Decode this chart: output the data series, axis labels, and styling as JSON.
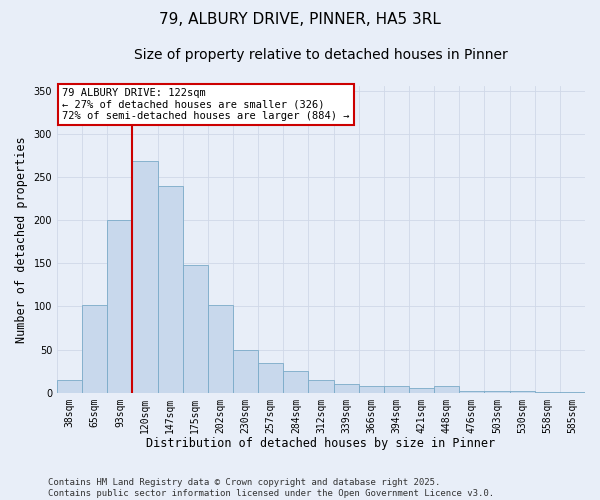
{
  "title1": "79, ALBURY DRIVE, PINNER, HA5 3RL",
  "title2": "Size of property relative to detached houses in Pinner",
  "xlabel": "Distribution of detached houses by size in Pinner",
  "ylabel": "Number of detached properties",
  "bar_color": "#c8d8ec",
  "bar_edge_color": "#7aaac8",
  "background_color": "#e8eef8",
  "grid_color": "#d0d8e8",
  "bins": [
    "38sqm",
    "65sqm",
    "93sqm",
    "120sqm",
    "147sqm",
    "175sqm",
    "202sqm",
    "230sqm",
    "257sqm",
    "284sqm",
    "312sqm",
    "339sqm",
    "366sqm",
    "394sqm",
    "421sqm",
    "448sqm",
    "476sqm",
    "503sqm",
    "530sqm",
    "558sqm",
    "585sqm"
  ],
  "values": [
    15,
    102,
    200,
    268,
    240,
    148,
    102,
    50,
    35,
    25,
    15,
    10,
    8,
    8,
    6,
    8,
    2,
    2,
    2,
    1,
    1
  ],
  "red_line_index": 3,
  "red_line_color": "#cc0000",
  "annotation_text": "79 ALBURY DRIVE: 122sqm\n← 27% of detached houses are smaller (326)\n72% of semi-detached houses are larger (884) →",
  "annotation_box_color": "#ffffff",
  "annotation_box_edge": "#cc0000",
  "ylim": [
    0,
    355
  ],
  "yticks": [
    0,
    50,
    100,
    150,
    200,
    250,
    300,
    350
  ],
  "footer": "Contains HM Land Registry data © Crown copyright and database right 2025.\nContains public sector information licensed under the Open Government Licence v3.0.",
  "title_fontsize": 11,
  "subtitle_fontsize": 10,
  "axis_label_fontsize": 8.5,
  "tick_fontsize": 7,
  "annotation_fontsize": 7.5,
  "footer_fontsize": 6.5
}
